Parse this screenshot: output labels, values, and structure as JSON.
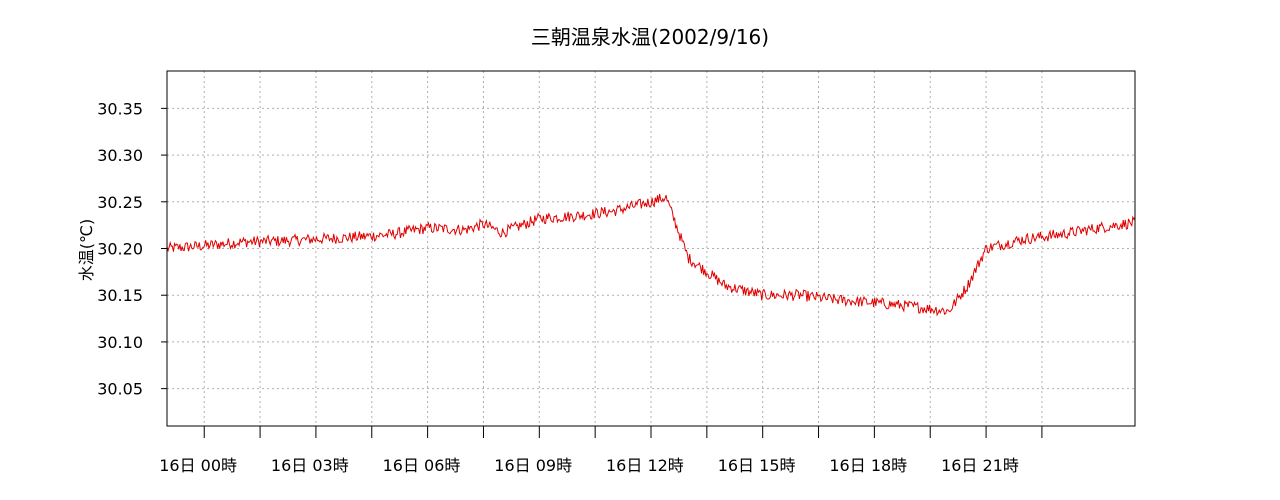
{
  "chart_data": {
    "type": "line",
    "title": "三朝温泉水温(2002/9/16)",
    "xlabel": "",
    "ylabel": "水温(℃)",
    "ylim": [
      30.01,
      30.39
    ],
    "xlim_hours": [
      -1.0,
      25.0
    ],
    "grid": true,
    "line_color": "#e00000",
    "y_ticks": [
      {
        "value": 30.05,
        "label": "30.05"
      },
      {
        "value": 30.1,
        "label": "30.10"
      },
      {
        "value": 30.15,
        "label": "30.15"
      },
      {
        "value": 30.2,
        "label": "30.20"
      },
      {
        "value": 30.25,
        "label": "30.25"
      },
      {
        "value": 30.3,
        "label": "30.30"
      },
      {
        "value": 30.35,
        "label": "30.35"
      }
    ],
    "x_minor_tick_hours": [
      0,
      1.5,
      4.5,
      7.5,
      10.5,
      13.5,
      16.5,
      19.5,
      22.5
    ],
    "x_tick_labels": [
      {
        "hour": 0,
        "label": "16日 00時"
      },
      {
        "hour": 3,
        "label": "16日 03時"
      },
      {
        "hour": 6,
        "label": "16日 06時"
      },
      {
        "hour": 9,
        "label": "16日 09時"
      },
      {
        "hour": 12,
        "label": "16日 12時"
      },
      {
        "hour": 15,
        "label": "16日 15時"
      },
      {
        "hour": 18,
        "label": "16日 18時"
      },
      {
        "hour": 21,
        "label": "16日 21時"
      }
    ],
    "series": [
      {
        "x_hours": [
          -1.0,
          0.0,
          1.0,
          2.0,
          3.0,
          4.0,
          5.0,
          6.0,
          7.0,
          7.5,
          8.0,
          9.0,
          10.0,
          11.0,
          12.0,
          12.4,
          13.0,
          14.0,
          15.0,
          16.0,
          17.0,
          18.0,
          19.0,
          20.0,
          20.5,
          21.0,
          22.0,
          23.0,
          24.0,
          25.0
        ],
        "y": [
          30.2,
          30.203,
          30.207,
          30.208,
          30.21,
          30.212,
          30.215,
          30.222,
          30.22,
          30.226,
          30.217,
          30.232,
          30.235,
          30.24,
          30.25,
          30.255,
          30.19,
          30.16,
          30.15,
          30.15,
          30.145,
          30.142,
          30.138,
          30.133,
          30.16,
          30.2,
          30.21,
          30.215,
          30.222,
          30.228
        ]
      }
    ]
  }
}
